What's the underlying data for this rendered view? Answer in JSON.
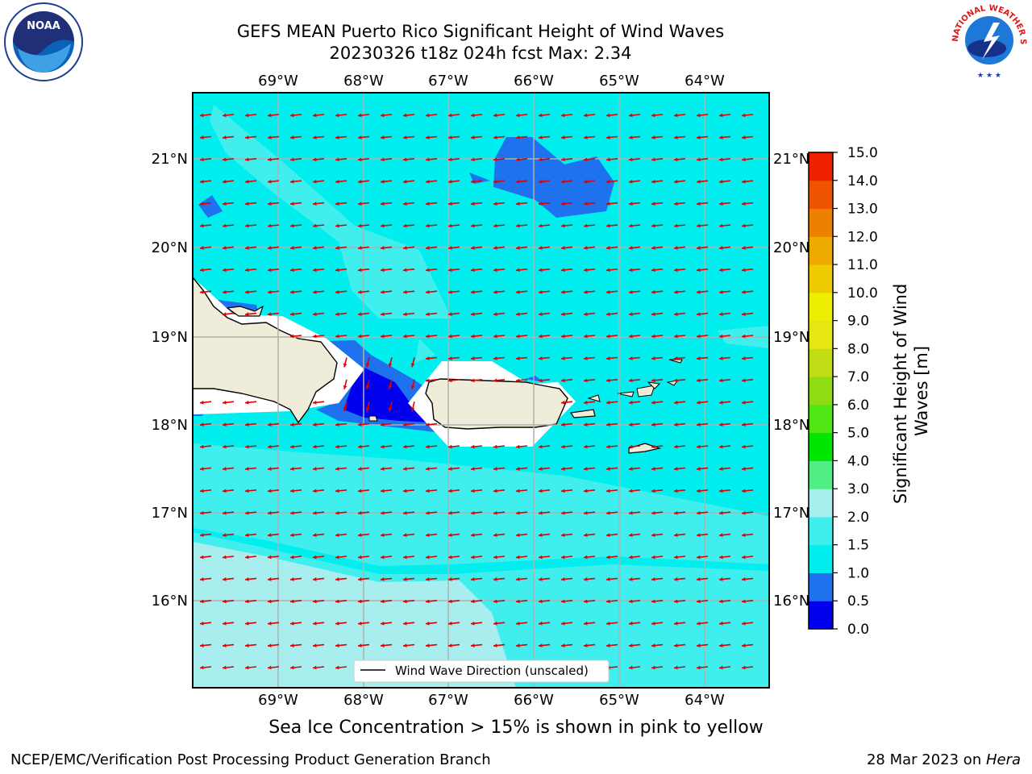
{
  "title_line1": "GEFS MEAN Puerto Rico Significant Height of Wind Waves",
  "title_line2": "20230326 t18z 024h fcst   Max: 2.34",
  "subtitle": "Sea Ice Concentration > 15% is shown in pink to yellow",
  "credit": "NCEP/EMC/Verification Post Processing Product Generation Branch",
  "date_text": "28 Mar 2023 on ",
  "date_machine": "Hera",
  "legend_label": "Wind Wave Direction (unscaled)",
  "colorbar_label_line1": "Significant Height of Wind",
  "colorbar_label_line2": "Waves [m]",
  "logos": {
    "left": "NOAA",
    "right": "NATIONAL WEATHER SERVICE"
  },
  "lon_ticks": [
    "69°W",
    "68°W",
    "67°W",
    "66°W",
    "65°W",
    "64°W"
  ],
  "lat_ticks": [
    "21°N",
    "20°N",
    "19°N",
    "18°N",
    "17°N",
    "16°N"
  ],
  "colorbar_ticks": [
    "0.0",
    "0.5",
    "1.0",
    "1.5",
    "2.0",
    "3.0",
    "4.0",
    "5.0",
    "6.0",
    "7.0",
    "8.0",
    "9.0",
    "10.0",
    "11.0",
    "12.0",
    "13.0",
    "14.0",
    "15.0"
  ],
  "colorbar_colors": [
    "#0000ee",
    "#1e72ee",
    "#00eeee",
    "#40eeee",
    "#a8eeee",
    "#50ee84",
    "#00e600",
    "#4ee614",
    "#8edd14",
    "#c0dc14",
    "#e6e614",
    "#eeee00",
    "#eeca00",
    "#eeaa00",
    "#ee8000",
    "#ee5400",
    "#ee2000"
  ],
  "colors": {
    "arrow": "#e00000",
    "land": "#efedda",
    "ocean": "#00eeee",
    "grid": "#b0b0b0"
  }
}
